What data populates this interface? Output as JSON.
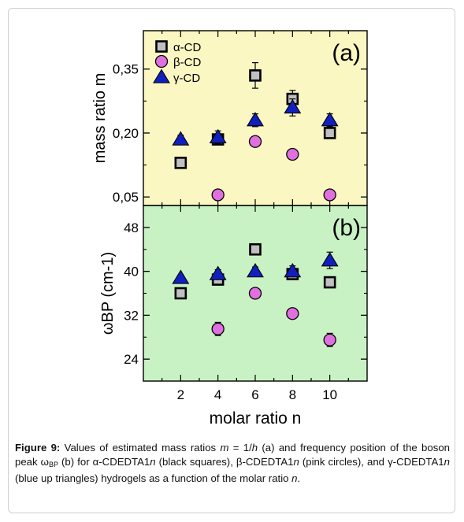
{
  "chart_data": [
    {
      "type": "scatter",
      "panel_label": "(a)",
      "ylabel": "mass ratio m",
      "ylim": [
        0.03,
        0.44
      ],
      "yticks": [
        0.05,
        0.2,
        0.35
      ],
      "ytick_labels": [
        "0,05",
        "0,20",
        "0,35"
      ],
      "legend_position": "top-left",
      "series": [
        {
          "name": "α-CD",
          "marker": "square",
          "fill": "#c0c0c0",
          "x": [
            2,
            4,
            6,
            8,
            10
          ],
          "y": [
            0.13,
            0.185,
            0.335,
            0.28,
            0.2
          ],
          "err": [
            0.0,
            0.01,
            0.03,
            0.02,
            0.01
          ]
        },
        {
          "name": "β-CD",
          "marker": "circle",
          "fill": "#e070e0",
          "x": [
            4,
            6,
            8,
            10
          ],
          "y": [
            0.055,
            0.18,
            0.15,
            0.055
          ],
          "err": [
            0.005,
            0.005,
            0.005,
            0.005
          ]
        },
        {
          "name": "γ-CD",
          "marker": "triangle",
          "fill": "#1020c0",
          "x": [
            2,
            4,
            6,
            8,
            10
          ],
          "y": [
            0.185,
            0.19,
            0.23,
            0.26,
            0.23
          ],
          "err": [
            0.01,
            0.015,
            0.015,
            0.02,
            0.015
          ]
        }
      ]
    },
    {
      "type": "scatter",
      "panel_label": "(b)",
      "ylabel": "ωBP (cm-1)",
      "ylim": [
        20,
        52
      ],
      "yticks": [
        24,
        32,
        40,
        48
      ],
      "ytick_labels": [
        "24",
        "32",
        "40",
        "48"
      ],
      "xlabel": "molar ratio n",
      "xlim": [
        0,
        12
      ],
      "xticks": [
        2,
        4,
        6,
        8,
        10
      ],
      "xtick_labels": [
        "2",
        "4",
        "6",
        "8",
        "10"
      ],
      "series": [
        {
          "name": "α-CD",
          "marker": "square",
          "fill": "#c0c0c0",
          "x": [
            2,
            4,
            6,
            8,
            10
          ],
          "y": [
            36,
            38.5,
            44,
            39.5,
            38
          ],
          "err": [
            0.5,
            0.8,
            0.8,
            0.8,
            0.8
          ]
        },
        {
          "name": "β-CD",
          "marker": "circle",
          "fill": "#e070e0",
          "x": [
            4,
            6,
            8,
            10
          ],
          "y": [
            29.5,
            36,
            32.3,
            27.5
          ],
          "err": [
            1.2,
            0.8,
            0.5,
            1.2
          ]
        },
        {
          "name": "γ-CD",
          "marker": "triangle",
          "fill": "#1020c0",
          "x": [
            2,
            4,
            6,
            8,
            10
          ],
          "y": [
            38.8,
            39.5,
            40,
            40,
            42
          ],
          "err": [
            0.5,
            0.8,
            0.8,
            1.0,
            1.5
          ]
        }
      ]
    }
  ],
  "caption": {
    "label": "Figure 9:",
    "p1": " Values of estimated mass ratios ",
    "m": "m",
    "p2": " = 1/",
    "h": "h",
    "p3": " (a) and frequency position of the boson peak ω",
    "sub": "BP",
    "p4": " (b) for α-CDEDTA1",
    "n1": "n",
    "p5": " (black squares), β-CDEDTA1",
    "n2": "n",
    "p6": " (pink circles), and γ-CDEDTA1",
    "n3": "n",
    "p7": " (blue up triangles) hydrogels as a function of the molar ratio ",
    "n4": "n",
    "p8": "."
  },
  "colors": {
    "panel_a_bg": "#fbf7c2",
    "panel_b_bg": "#c9f2c4",
    "axis": "#000000"
  }
}
